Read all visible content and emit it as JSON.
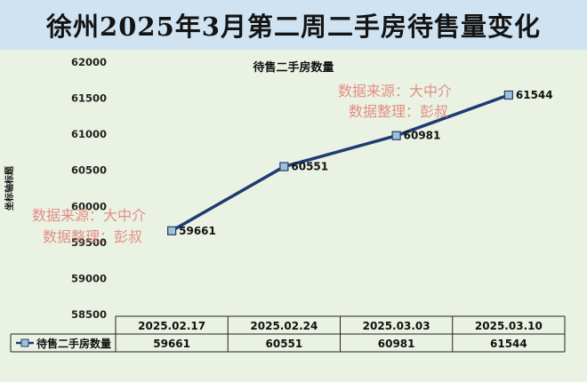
{
  "page": {
    "title": "徐州2025年3月第二周二手房待售量变化"
  },
  "chart_data": {
    "type": "line",
    "title": "待售二手房数量",
    "ylabel": "坐标轴标题",
    "xlabel": "",
    "categories": [
      "2025.02.17",
      "2025.02.24",
      "2025.03.03",
      "2025.03.10"
    ],
    "series": [
      {
        "name": "待售二手房数量",
        "values": [
          59661,
          60551,
          60981,
          61544
        ]
      }
    ],
    "ylim": [
      58500,
      62000
    ],
    "yticks": [
      58500,
      59000,
      59500,
      60000,
      60500,
      61000,
      61500,
      62000
    ],
    "grid": false,
    "legend": "data-table",
    "data_labels": true,
    "line_color": "#1f3b73",
    "marker_color": "#9cc4d6",
    "watermark": {
      "line1": "数据来源：大中介",
      "line2": "数据整理：彭叔"
    }
  }
}
